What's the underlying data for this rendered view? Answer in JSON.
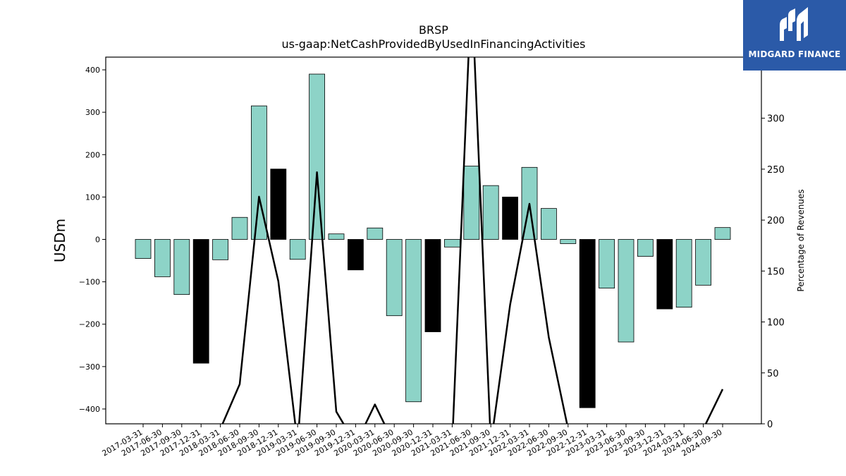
{
  "chart_data": {
    "type": "bar",
    "title": "BRSP",
    "subtitle": "us-gaap:NetCashProvidedByUsedInFinancingActivities",
    "ylabel": "USDm",
    "y2label": "Percentage of Revenues",
    "ylim": [
      -435,
      430
    ],
    "y2lim": [
      0,
      360
    ],
    "yticks": [
      -400,
      -300,
      -200,
      -100,
      0,
      100,
      200,
      300,
      400
    ],
    "y2ticks": [
      0,
      50,
      100,
      150,
      200,
      250,
      300
    ],
    "categories": [
      "2017-03-31",
      "2017-06-30",
      "2017-09-30",
      "2017-12-31",
      "2018-03-31",
      "2018-06-30",
      "2018-09-30",
      "2018-12-31",
      "2019-03-31",
      "2019-06-30",
      "2019-09-30",
      "2019-12-31",
      "2020-03-31",
      "2020-06-30",
      "2020-09-30",
      "2020-12-31",
      "2021-03-31",
      "2021-06-30",
      "2021-09-30",
      "2021-12-31",
      "2022-03-31",
      "2022-06-30",
      "2022-09-30",
      "2022-12-31",
      "2023-03-31",
      "2023-06-30",
      "2023-09-30",
      "2023-12-31",
      "2024-03-31",
      "2024-06-30",
      "2024-09-30"
    ],
    "values": [
      -45,
      -88,
      -130,
      -292,
      -48,
      52,
      315,
      166,
      -47,
      390,
      13,
      -72,
      27,
      -180,
      -383,
      -218,
      -18,
      173,
      127,
      100,
      170,
      73,
      -10,
      -397,
      -115,
      -242,
      -40,
      -164,
      -160,
      -108,
      28
    ],
    "year_end_flags": [
      false,
      false,
      false,
      true,
      false,
      false,
      false,
      true,
      false,
      false,
      false,
      true,
      false,
      false,
      false,
      true,
      false,
      false,
      false,
      true,
      false,
      false,
      false,
      true,
      false,
      false,
      false,
      true,
      false,
      false,
      false
    ],
    "line_series": {
      "name": "Percentage of Revenues",
      "values": [
        null,
        null,
        null,
        null,
        -5,
        39,
        223,
        140,
        -20,
        247,
        12,
        -20,
        19,
        -20,
        -20,
        -20,
        -20,
        430,
        -20,
        117,
        216,
        85,
        -5,
        null,
        null,
        null,
        null,
        null,
        null,
        -5,
        34
      ]
    },
    "colors": {
      "bar": "#8dd3c7",
      "bar_year_end": "#000000",
      "line": "#000000"
    },
    "grid": false,
    "legend": "none"
  },
  "logo": {
    "text": "MIDGARD FINANCE"
  }
}
